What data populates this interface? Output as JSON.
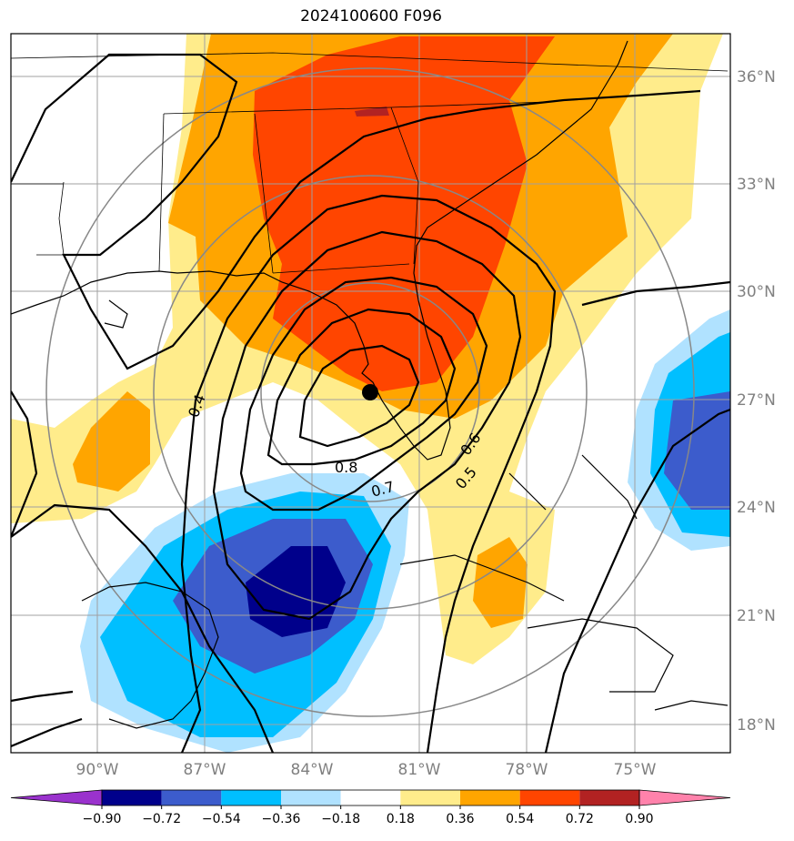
{
  "map": {
    "title": "2024100600 F096",
    "lat_labels": [
      "36°N",
      "33°N",
      "30°N",
      "27°N",
      "24°N",
      "21°N",
      "18°N"
    ],
    "lon_labels": [
      "90°W",
      "87°W",
      "84°W",
      "81°W",
      "78°W",
      "75°W"
    ],
    "contour_labels": [
      "0.4",
      "0.8",
      "0.7",
      "0.6",
      "0.5"
    ],
    "colorbar": {
      "ticks": [
        "−0.90",
        "−0.72",
        "−0.54",
        "−0.36",
        "−0.18",
        "0.18",
        "0.36",
        "0.54",
        "0.72",
        "0.90"
      ],
      "colors": [
        "#9a32cd",
        "#00008b",
        "#3c5ccc",
        "#00bfff",
        "#b0e2ff",
        "#ffffff",
        "#ffec8b",
        "#ffa500",
        "#ff4500",
        "#b22222",
        "#ff82ab"
      ]
    },
    "marker": "storm-center"
  }
}
